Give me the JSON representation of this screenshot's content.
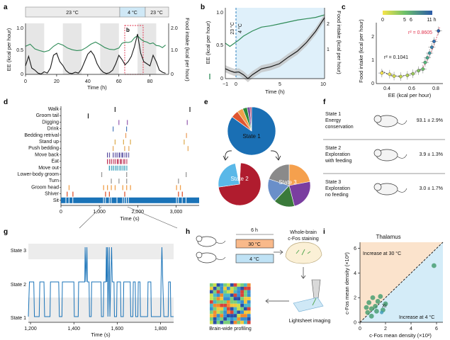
{
  "panels": {
    "a": "a",
    "b": "b",
    "c": "c",
    "d": "d",
    "e": "e",
    "f": "f",
    "g": "g",
    "h": "h",
    "i": "i"
  },
  "colors": {
    "green": "#2e8b57",
    "black": "#1a1a1a",
    "red": "#e0314b",
    "blue": "#1a73b8",
    "lightblue": "#cfe8f6",
    "grey": "#e6e6e6",
    "orange_bg": "#fbe3cc"
  },
  "chart_data": [
    {
      "id": "a",
      "type": "line",
      "temperature_bar": [
        "23 °C",
        "4 °C",
        "23 °C"
      ],
      "inset_label": "b",
      "xlabel": "Time (h)",
      "ylabel": "EE (kcal per hour)",
      "ylabel_right": "Food intake (kcal per hour)",
      "xticks": [
        0,
        20,
        40,
        60,
        80
      ],
      "yticks": [
        "0",
        "0.5",
        "1.0"
      ],
      "yticks_right": [
        "0",
        "1.0",
        "2.0"
      ],
      "xlim": [
        0,
        92
      ],
      "ylim": [
        0,
        1.2
      ],
      "ylim_right": [
        0,
        2.4
      ],
      "series": [
        {
          "axis": "left",
          "values": [
            [
              0,
              0.66
            ],
            [
              3,
              0.71
            ],
            [
              6,
              0.6
            ],
            [
              9,
              0.56
            ],
            [
              12,
              0.53
            ],
            [
              15,
              0.56
            ],
            [
              18,
              0.66
            ],
            [
              21,
              0.73
            ],
            [
              24,
              0.69
            ],
            [
              27,
              0.62
            ],
            [
              30,
              0.58
            ],
            [
              33,
              0.56
            ],
            [
              36,
              0.57
            ],
            [
              39,
              0.63
            ],
            [
              42,
              0.71
            ],
            [
              45,
              0.76
            ],
            [
              48,
              0.7
            ],
            [
              51,
              0.63
            ],
            [
              54,
              0.59
            ],
            [
              57,
              0.58
            ],
            [
              60,
              0.62
            ],
            [
              62,
              0.73
            ],
            [
              64,
              0.76
            ],
            [
              66,
              0.75
            ],
            [
              68,
              0.77
            ],
            [
              70,
              0.86
            ],
            [
              72,
              0.91
            ],
            [
              74,
              0.83
            ],
            [
              76,
              0.78
            ],
            [
              78,
              0.76
            ],
            [
              80,
              0.72
            ],
            [
              82,
              0.74
            ],
            [
              84,
              0.68
            ],
            [
              86,
              0.67
            ],
            [
              88,
              0.63
            ],
            [
              90,
              0.69
            ]
          ]
        },
        {
          "axis": "right",
          "values": [
            [
              0,
              0.4
            ],
            [
              2,
              0.85
            ],
            [
              4,
              0.3
            ],
            [
              6,
              0.2
            ],
            [
              8,
              0.06
            ],
            [
              10,
              0.02
            ],
            [
              12,
              0.12
            ],
            [
              14,
              0.06
            ],
            [
              16,
              0.3
            ],
            [
              18,
              0.9
            ],
            [
              20,
              1.0
            ],
            [
              22,
              0.6
            ],
            [
              24,
              0.42
            ],
            [
              26,
              0.18
            ],
            [
              28,
              0.06
            ],
            [
              30,
              0.04
            ],
            [
              32,
              0.1
            ],
            [
              34,
              0.06
            ],
            [
              36,
              0.25
            ],
            [
              38,
              0.6
            ],
            [
              40,
              0.95
            ],
            [
              42,
              1.1
            ],
            [
              44,
              0.9
            ],
            [
              46,
              0.5
            ],
            [
              48,
              0.25
            ],
            [
              50,
              0.1
            ],
            [
              52,
              0.04
            ],
            [
              54,
              0.08
            ],
            [
              56,
              0.2
            ],
            [
              58,
              0.5
            ],
            [
              60,
              0.9
            ],
            [
              62,
              0.7
            ],
            [
              64,
              0.45
            ],
            [
              66,
              0.6
            ],
            [
              68,
              0.85
            ],
            [
              70,
              1.3
            ],
            [
              72,
              1.9
            ],
            [
              74,
              1.0
            ],
            [
              76,
              0.6
            ],
            [
              78,
              0.5
            ],
            [
              80,
              0.4
            ],
            [
              82,
              0.9
            ],
            [
              84,
              0.6
            ],
            [
              86,
              0.2
            ],
            [
              88,
              0.1
            ],
            [
              90,
              0.05
            ]
          ]
        }
      ]
    },
    {
      "id": "b",
      "type": "line",
      "temp_labels": [
        "23 °C",
        "4 °C"
      ],
      "ylabel": "EE (kcal per hour)",
      "ylabel_right": "Food intake (kcal per hour)",
      "xlabel": "Time (h)",
      "xticks": [
        "−1",
        "0",
        "5",
        "10"
      ],
      "yticks": [
        "0",
        "0.5",
        "1.0"
      ],
      "yticks_right": [
        "1",
        "2"
      ],
      "xlim": [
        -1,
        10
      ],
      "ylim": [
        0,
        1.1
      ],
      "ylim_right": [
        0.5,
        2.3
      ],
      "series": [
        {
          "axis": "left",
          "values": [
            [
              -1,
              0.55
            ],
            [
              -0.5,
              0.5
            ],
            [
              0,
              0.55
            ],
            [
              0.5,
              0.6
            ],
            [
              1,
              0.66
            ],
            [
              1.5,
              0.7
            ],
            [
              2,
              0.74
            ],
            [
              3,
              0.8
            ],
            [
              4,
              0.82
            ],
            [
              5,
              0.85
            ],
            [
              6,
              0.88
            ],
            [
              7,
              0.91
            ],
            [
              8,
              0.93
            ],
            [
              9,
              0.95
            ],
            [
              10,
              0.99
            ]
          ]
        },
        {
          "axis": "right",
          "values": [
            [
              -1,
              0.75
            ],
            [
              -0.5,
              0.7
            ],
            [
              0,
              0.66
            ],
            [
              0.5,
              0.67
            ],
            [
              1,
              0.6
            ],
            [
              1.5,
              0.5
            ],
            [
              2,
              0.6
            ],
            [
              3,
              0.75
            ],
            [
              4,
              0.8
            ],
            [
              5,
              0.88
            ],
            [
              6,
              1.05
            ],
            [
              7,
              1.2
            ],
            [
              8,
              1.42
            ],
            [
              9,
              1.7
            ],
            [
              10,
              2.05
            ]
          ]
        }
      ]
    },
    {
      "id": "c",
      "type": "scatter",
      "xlabel": "EE (kcal per hour)",
      "ylabel": "Food intake (kcal per hour)",
      "xticks": [
        0.4,
        0.6,
        0.8
      ],
      "yticks": [
        "0",
        "1",
        "2"
      ],
      "xlim": [
        0.3,
        0.9
      ],
      "ylim": [
        0,
        2.6
      ],
      "colorbar": {
        "ticks": [
          "0",
          "5",
          "6",
          "11 h"
        ]
      },
      "fits": [
        {
          "label": "r² = 0.1041",
          "color": "#1a1a1a"
        },
        {
          "label": "r² = 0.8605",
          "color": "#e0314b"
        }
      ],
      "points": [
        [
          0.35,
          0.45
        ],
        [
          0.42,
          0.4
        ],
        [
          0.46,
          0.32
        ],
        [
          0.52,
          0.3
        ],
        [
          0.58,
          0.35
        ],
        [
          0.63,
          0.42
        ],
        [
          0.68,
          0.55
        ],
        [
          0.72,
          0.62
        ],
        [
          0.74,
          0.9
        ],
        [
          0.76,
          1.1
        ],
        [
          0.78,
          1.3
        ],
        [
          0.8,
          1.55
        ],
        [
          0.82,
          1.8
        ],
        [
          0.86,
          2.25
        ]
      ]
    },
    {
      "id": "d",
      "type": "raster",
      "behaviors": [
        "Walk",
        "Groom tail",
        "Digging",
        "Drink",
        "Bedding retrival",
        "Stand up",
        "Push bedding",
        "Move back",
        "Eat",
        "Move out",
        "Lower-body groom",
        "Turn",
        "Groom head",
        "Shiver",
        "Sit"
      ],
      "xlabel": "Time (s)",
      "xticks": [
        0,
        1000,
        2000,
        3000
      ],
      "xlim": [
        0,
        3600
      ]
    },
    {
      "id": "e",
      "type": "pie",
      "states": [
        {
          "name": "State 1",
          "slices": [
            0.85,
            0.05,
            0.04,
            0.03,
            0.02,
            0.01
          ]
        },
        {
          "name": "State 2",
          "slices": [
            0.72,
            0.24,
            0.04
          ]
        },
        {
          "name": "State 3",
          "slices": [
            0.22,
            0.24,
            0.16,
            0.18,
            0.2
          ]
        }
      ]
    },
    {
      "id": "f",
      "type": "table",
      "rows": [
        {
          "title": "State 1",
          "desc1": "Energy",
          "desc2": "conservation",
          "value": "93.1 ± 2.9%"
        },
        {
          "title": "State 2",
          "desc1": "Exploration",
          "desc2": "with feeding",
          "value": "3.9 ± 1.3%"
        },
        {
          "title": "State 3",
          "desc1": "Exploration",
          "desc2": "no feeding",
          "value": "3.0 ± 1.7%"
        }
      ]
    },
    {
      "id": "g",
      "type": "line",
      "ylabels": [
        "State 3",
        "State 2",
        "State 1"
      ],
      "xlabel": "Time (s)",
      "xticks": [
        "1,200",
        "1,400",
        "1,600",
        "1,800"
      ],
      "xlim": [
        1190,
        1860
      ]
    },
    {
      "id": "h",
      "type": "diagram",
      "duration": "6 h",
      "conditions": [
        "30 °C",
        "4 °C"
      ],
      "staining": "Whole-brain\nc-Fos staining",
      "imaging": "Lightsheet imaging",
      "profiling": "Brain-wide profiling"
    },
    {
      "id": "i",
      "type": "scatter",
      "title": "Thalamus",
      "xlabel": "c-Fos mean density (×10²)",
      "ylabel": "c-Fos mean density (×10²)",
      "xticks": [
        0,
        2,
        4,
        6
      ],
      "yticks": [
        0,
        2,
        4,
        6
      ],
      "xlim": [
        0,
        6.5
      ],
      "ylim": [
        0,
        6.5
      ],
      "annotations": [
        "Increase at 30 °C",
        "Increase at 4 °C",
        "Xi"
      ],
      "points": [
        [
          0.6,
          0.8
        ],
        [
          0.9,
          1.1
        ],
        [
          1.2,
          1.3
        ],
        [
          0.7,
          1.6
        ],
        [
          1.0,
          2.0
        ],
        [
          1.4,
          1.7
        ],
        [
          0.5,
          1.2
        ],
        [
          1.6,
          2.1
        ],
        [
          1.8,
          1.0
        ],
        [
          2.0,
          1.5
        ],
        [
          0.9,
          0.5
        ],
        [
          1.3,
          0.9
        ],
        [
          5.8,
          4.6
        ],
        [
          1.7,
          0.8
        ]
      ]
    }
  ]
}
